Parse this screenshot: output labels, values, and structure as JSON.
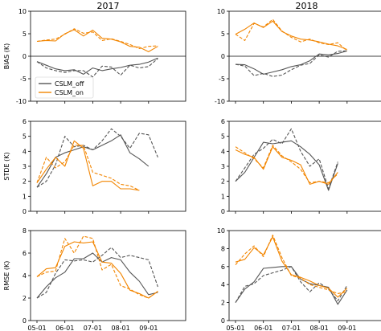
{
  "colors": {
    "off": "#555555",
    "on": "#f28500",
    "zero": "#000000"
  },
  "columns": [
    "2017",
    "2018"
  ],
  "x_ticks": [
    "05-01",
    "06-01",
    "07-01",
    "08-01",
    "09-01"
  ],
  "legend": {
    "placement": "lower-left",
    "entries": [
      "CSLM_off",
      "CSLM_on"
    ]
  },
  "chart_data": [
    {
      "type": "line",
      "title": "2017",
      "ylabel": "BIAS (K)",
      "ylim": [
        -10,
        10
      ],
      "yticks": [
        -10,
        -5,
        0,
        5,
        10
      ],
      "zero_line": true,
      "show_legend": true,
      "series": [
        {
          "name": "CSLM_off",
          "style": "solid",
          "values": [
            -1.2,
            -2.0,
            -2.8,
            -3.2,
            -3.0,
            -4.0,
            -2.6,
            -3.2,
            -2.8,
            -2.5,
            -2.0,
            -1.8,
            -1.3,
            -0.4
          ]
        },
        {
          "name": "CSLM_off",
          "style": "dashed",
          "values": [
            -1.2,
            -2.6,
            -3.2,
            -3.6,
            -3.2,
            -3.2,
            -4.6,
            -2.2,
            -2.4,
            -4.2,
            -2.0,
            -2.6,
            -2.3,
            -0.5
          ]
        },
        {
          "name": "CSLM_on",
          "style": "solid",
          "values": [
            3.3,
            3.5,
            3.4,
            5.0,
            5.9,
            4.5,
            5.8,
            4.0,
            3.8,
            3.2,
            2.2,
            2.0,
            1.0,
            2.2
          ]
        },
        {
          "name": "CSLM_on",
          "style": "dashed",
          "values": [
            3.3,
            3.6,
            3.8,
            4.9,
            6.1,
            5.1,
            5.4,
            3.5,
            3.9,
            3.3,
            2.6,
            1.7,
            2.2,
            2.3
          ]
        }
      ]
    },
    {
      "type": "line",
      "title": "2018",
      "ylabel": "",
      "ylim": [
        -10,
        10
      ],
      "yticks": [
        -10,
        -5,
        0,
        5,
        10
      ],
      "zero_line": true,
      "show_legend": false,
      "series": [
        {
          "name": "CSLM_off",
          "style": "solid",
          "values": [
            -1.8,
            -1.9,
            -2.8,
            -4.0,
            -3.5,
            -3.0,
            -2.3,
            -1.9,
            -1.0,
            0.5,
            0.3,
            0.6,
            1.2
          ]
        },
        {
          "name": "CSLM_off",
          "style": "dashed",
          "values": [
            -1.8,
            -2.2,
            -4.3,
            -3.8,
            -4.5,
            -4.2,
            -3.0,
            -2.0,
            -1.6,
            0.3,
            -0.2,
            1.1,
            1.2
          ]
        },
        {
          "name": "CSLM_on",
          "style": "solid",
          "values": [
            4.9,
            6.0,
            7.4,
            6.4,
            7.8,
            5.5,
            4.5,
            3.8,
            3.6,
            3.2,
            2.7,
            2.3,
            1.5
          ]
        },
        {
          "name": "CSLM_on",
          "style": "dashed",
          "values": [
            4.9,
            3.5,
            7.3,
            6.5,
            8.2,
            5.6,
            4.2,
            3.2,
            3.8,
            3.0,
            2.6,
            3.0,
            1.2
          ]
        }
      ]
    },
    {
      "type": "line",
      "title": "",
      "ylabel": "STDE (K)",
      "ylim": [
        0,
        6
      ],
      "yticks": [
        0,
        1,
        2,
        3,
        4,
        5,
        6
      ],
      "zero_line": false,
      "show_legend": false,
      "series": [
        {
          "name": "CSLM_off",
          "style": "solid",
          "values": [
            1.6,
            2.5,
            3.6,
            3.9,
            4.1,
            4.3,
            4.1,
            4.4,
            4.7,
            5.1,
            3.9,
            3.5,
            3.0
          ]
        },
        {
          "name": "CSLM_off",
          "style": "dashed",
          "values": [
            1.6,
            2.0,
            3.1,
            5.0,
            4.3,
            4.4,
            4.1,
            4.7,
            5.5,
            5.0,
            4.2,
            5.2,
            5.1,
            3.6
          ]
        },
        {
          "name": "CSLM_on",
          "style": "solid",
          "values": [
            1.9,
            2.8,
            3.6,
            3.0,
            4.7,
            4.2,
            1.7,
            2.0,
            2.0,
            1.5,
            1.5,
            1.4
          ]
        },
        {
          "name": "CSLM_on",
          "style": "dashed",
          "values": [
            1.9,
            3.6,
            2.9,
            3.3,
            4.4,
            4.4,
            2.6,
            2.4,
            2.2,
            1.8,
            1.7,
            1.4
          ]
        }
      ]
    },
    {
      "type": "line",
      "title": "",
      "ylabel": "",
      "ylim": [
        0,
        6
      ],
      "yticks": [
        0,
        1,
        2,
        3,
        4,
        5,
        6
      ],
      "zero_line": false,
      "show_legend": false,
      "series": [
        {
          "name": "CSLM_off",
          "style": "solid",
          "values": [
            2.0,
            2.6,
            3.6,
            4.6,
            4.5,
            4.6,
            4.7,
            4.3,
            3.8,
            3.1,
            1.4,
            3.2
          ]
        },
        {
          "name": "CSLM_off",
          "style": "dashed",
          "values": [
            2.0,
            2.9,
            3.8,
            4.2,
            4.8,
            4.5,
            5.5,
            4.0,
            3.0,
            3.5,
            1.5,
            3.3
          ]
        },
        {
          "name": "CSLM_on",
          "style": "solid",
          "values": [
            4.1,
            3.8,
            3.6,
            2.8,
            4.3,
            3.6,
            3.4,
            3.1,
            1.8,
            2.0,
            1.8,
            2.6
          ]
        },
        {
          "name": "CSLM_on",
          "style": "dashed",
          "values": [
            4.3,
            3.9,
            3.5,
            2.9,
            4.4,
            3.7,
            3.3,
            2.8,
            1.9,
            2.0,
            1.9,
            2.5
          ]
        }
      ]
    },
    {
      "type": "line",
      "title": "",
      "ylabel": "RMSE (K)",
      "ylim": [
        0,
        8
      ],
      "yticks": [
        0,
        2,
        4,
        6,
        8
      ],
      "zero_line": false,
      "show_legend": false,
      "series": [
        {
          "name": "CSLM_off",
          "style": "solid",
          "values": [
            2.0,
            3.0,
            3.8,
            4.3,
            5.5,
            5.5,
            6.0,
            5.2,
            5.6,
            5.4,
            4.3,
            3.5,
            2.3,
            2.5
          ]
        },
        {
          "name": "CSLM_off",
          "style": "dashed",
          "values": [
            2.0,
            2.5,
            4.2,
            5.4,
            5.3,
            5.4,
            5.2,
            5.8,
            6.5,
            5.6,
            5.8,
            5.6,
            5.4,
            3.0
          ]
        },
        {
          "name": "CSLM_on",
          "style": "solid",
          "values": [
            3.9,
            4.6,
            4.7,
            6.6,
            7.0,
            6.9,
            7.0,
            5.2,
            5.1,
            4.2,
            2.7,
            2.4,
            2.0,
            2.6
          ]
        },
        {
          "name": "CSLM_on",
          "style": "dashed",
          "values": [
            3.9,
            4.3,
            4.4,
            7.3,
            6.0,
            7.5,
            7.3,
            4.5,
            5.0,
            3.1,
            2.8,
            2.3,
            2.0,
            2.6
          ]
        }
      ]
    },
    {
      "type": "line",
      "title": "",
      "ylabel": "",
      "ylim": [
        0,
        10
      ],
      "yticks": [
        0,
        2,
        4,
        6,
        8,
        10
      ],
      "zero_line": false,
      "show_legend": false,
      "series": [
        {
          "name": "CSLM_off",
          "style": "solid",
          "values": [
            2.0,
            3.5,
            4.3,
            5.8,
            5.9,
            6.0,
            6.0,
            4.6,
            4.1,
            3.9,
            3.7,
            1.8,
            3.4
          ]
        },
        {
          "name": "CSLM_off",
          "style": "dashed",
          "values": [
            2.0,
            3.8,
            4.1,
            5.0,
            5.3,
            5.6,
            6.0,
            4.3,
            3.2,
            4.2,
            3.5,
            2.2,
            3.9
          ]
        },
        {
          "name": "CSLM_on",
          "style": "solid",
          "values": [
            6.5,
            6.8,
            8.1,
            7.3,
            9.3,
            6.6,
            5.1,
            4.8,
            4.4,
            3.9,
            3.6,
            2.6,
            3.6
          ]
        },
        {
          "name": "CSLM_on",
          "style": "dashed",
          "values": [
            6.2,
            7.4,
            8.3,
            7.1,
            9.5,
            7.0,
            5.0,
            4.7,
            4.0,
            3.7,
            3.4,
            3.0,
            3.2
          ]
        }
      ]
    }
  ]
}
